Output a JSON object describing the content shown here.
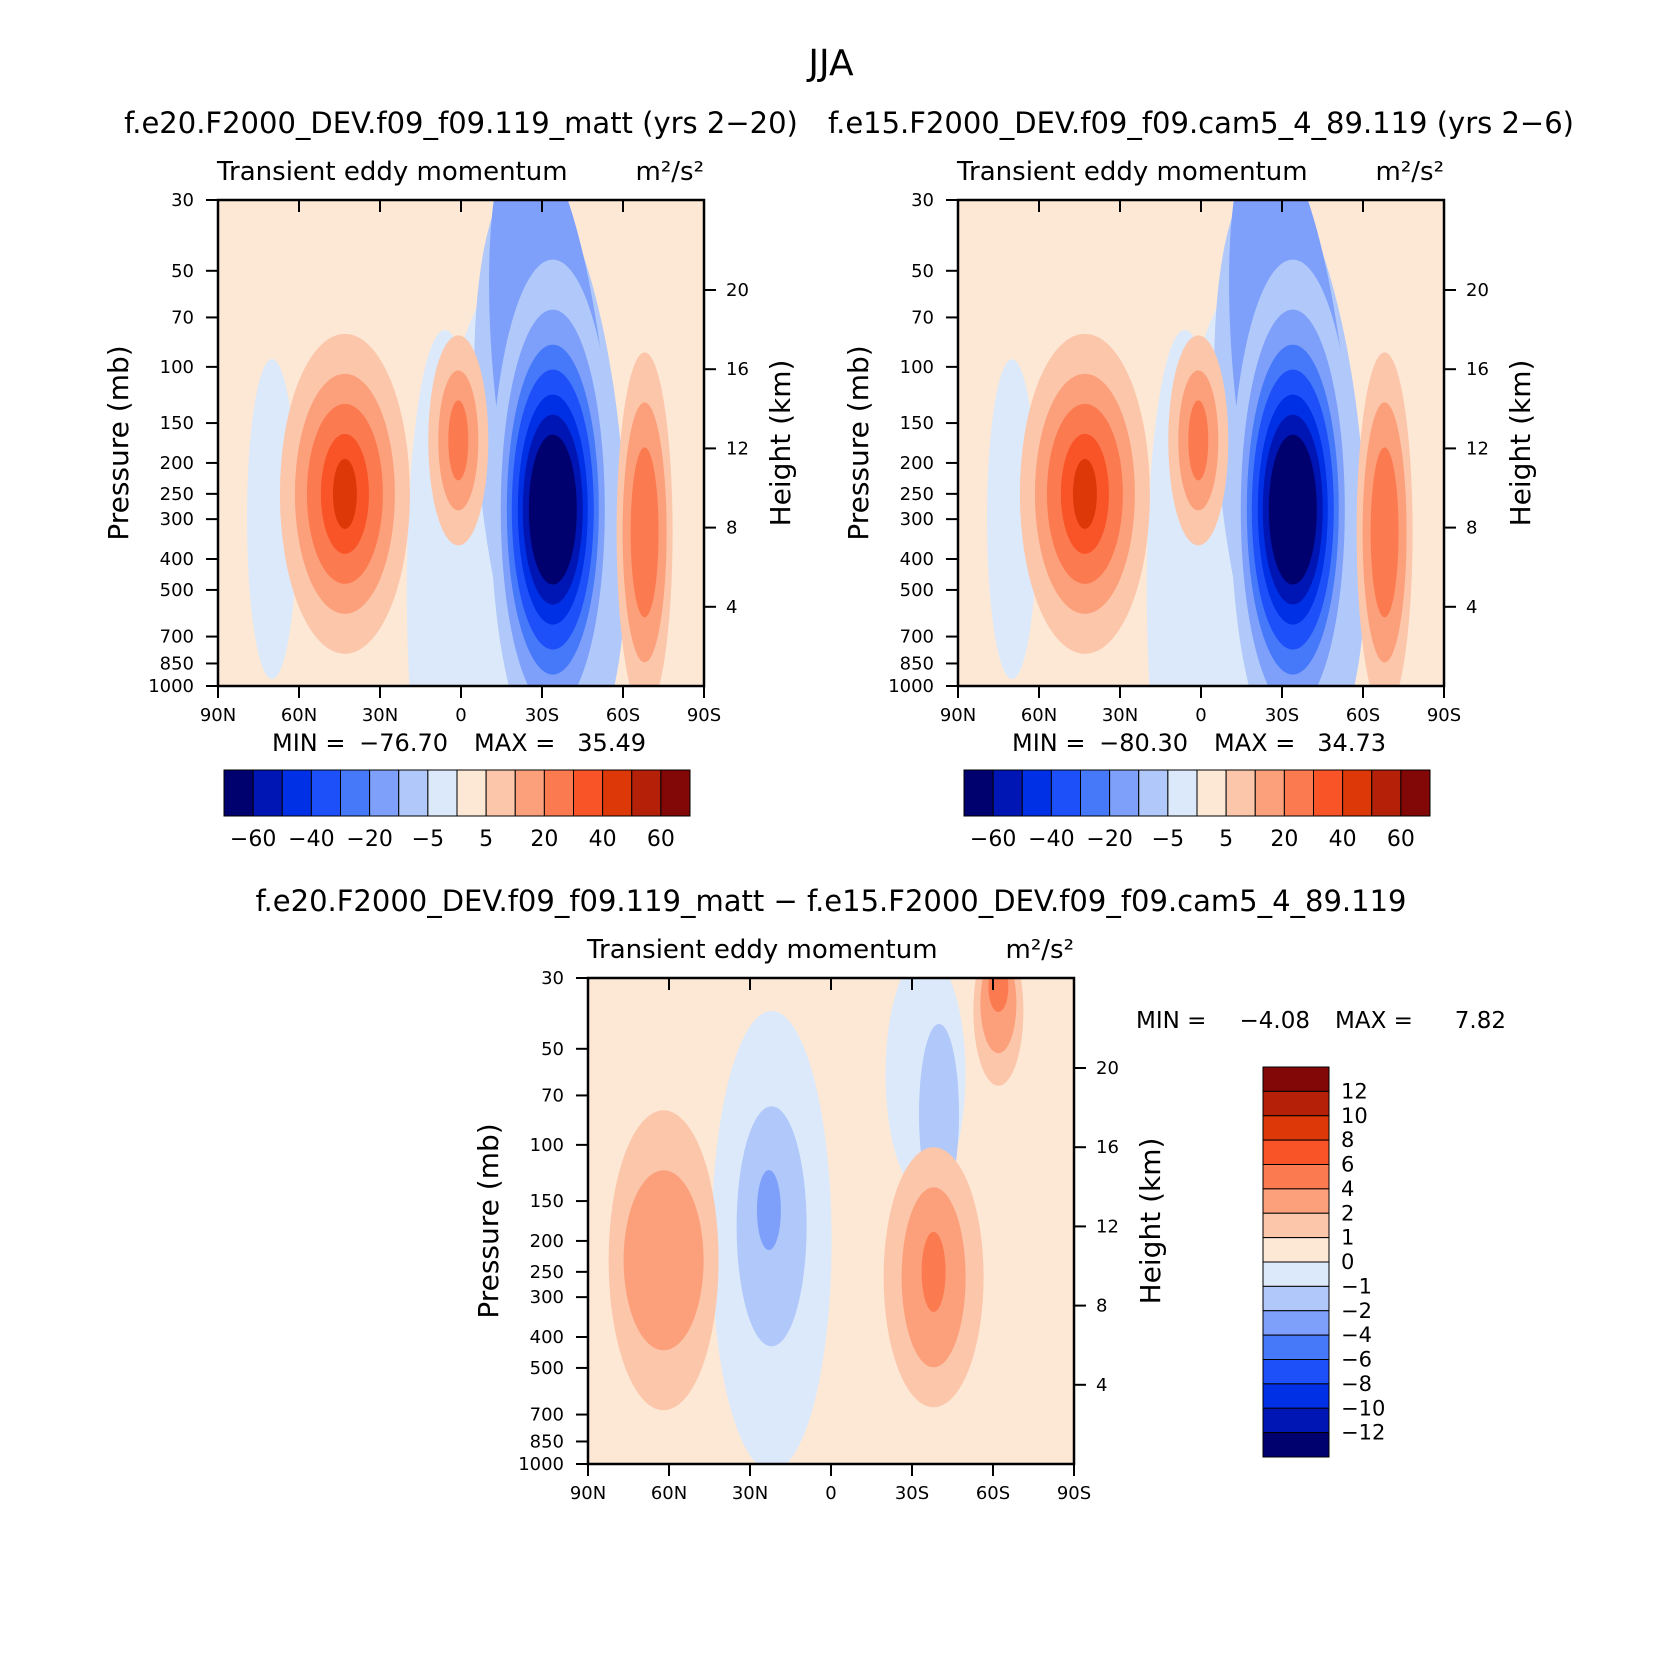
{
  "suptitle": "JJA",
  "colors": {
    "main_palette": [
      "#00006e",
      "#0016b4",
      "#0030e6",
      "#1e50fa",
      "#4678fa",
      "#7ea0fa",
      "#b0c8fa",
      "#dce9fa",
      "#fde8d6",
      "#fcc6aa",
      "#fca07c",
      "#fc7a50",
      "#f85428",
      "#dc3808",
      "#b42008",
      "#820808"
    ],
    "diff_palette": [
      "#00006e",
      "#0016b4",
      "#0030e6",
      "#1e50fa",
      "#4678fa",
      "#7ea0fa",
      "#b0c8fa",
      "#dce9fa",
      "#fde8d6",
      "#fcc6aa",
      "#fca07c",
      "#fc7a50",
      "#f85428",
      "#dc3808",
      "#b42008",
      "#820808"
    ]
  },
  "chart_data": [
    {
      "type": "heatmap",
      "panel": "model",
      "case_title": "f.e20.F2000_DEV.f09_f09.119_matt (yrs 2−20)",
      "subtitle": "Transient eddy momentum",
      "units": "m²/s²",
      "ylabel": "Pressure (mb)",
      "ylabel_right": "Height (km)",
      "x_ticks": [
        "90N",
        "60N",
        "30N",
        "0",
        "30S",
        "60S",
        "90S"
      ],
      "y_ticks": [
        "30",
        "50",
        "70",
        "100",
        "150",
        "200",
        "250",
        "300",
        "400",
        "500",
        "700",
        "850",
        "1000"
      ],
      "y_right_ticks": [
        "20",
        "16",
        "12",
        "8",
        "4"
      ],
      "stats": {
        "min_label": "MIN =",
        "min": "−76.70",
        "max_label": "MAX =",
        "max": "35.49"
      },
      "colorbar_labels": [
        "−60",
        "−40",
        "−20",
        "−5",
        "5",
        "20",
        "40",
        "60"
      ],
      "features": [
        {
          "lat": -34,
          "p": 280,
          "value": -76.7
        },
        {
          "lat": 43,
          "p": 250,
          "value": 35.5
        },
        {
          "lat": 1,
          "p": 200,
          "value": 22
        },
        {
          "lat": -68,
          "p": 300,
          "value": 30
        }
      ]
    },
    {
      "type": "heatmap",
      "panel": "control",
      "case_title": "f.e15.F2000_DEV.f09_f09.cam5_4_89.119 (yrs 2−6)",
      "subtitle": "Transient eddy momentum",
      "units": "m²/s²",
      "ylabel": "Pressure (mb)",
      "ylabel_right": "Height (km)",
      "x_ticks": [
        "90N",
        "60N",
        "30N",
        "0",
        "30S",
        "60S",
        "90S"
      ],
      "y_ticks": [
        "30",
        "50",
        "70",
        "100",
        "150",
        "200",
        "250",
        "300",
        "400",
        "500",
        "700",
        "850",
        "1000"
      ],
      "y_right_ticks": [
        "20",
        "16",
        "12",
        "8",
        "4"
      ],
      "stats": {
        "min_label": "MIN =",
        "min": "−80.30",
        "max_label": "MAX =",
        "max": "34.73"
      },
      "colorbar_labels": [
        "−60",
        "−40",
        "−20",
        "−5",
        "5",
        "20",
        "40",
        "60"
      ],
      "features": [
        {
          "lat": -34,
          "p": 280,
          "value": -80.3
        },
        {
          "lat": 43,
          "p": 250,
          "value": 34.7
        },
        {
          "lat": 1,
          "p": 200,
          "value": 22
        },
        {
          "lat": -68,
          "p": 300,
          "value": 30
        }
      ]
    },
    {
      "type": "heatmap",
      "panel": "difference",
      "case_title": "f.e20.F2000_DEV.f09_f09.119_matt − f.e15.F2000_DEV.f09_f09.cam5_4_89.119",
      "subtitle": "Transient eddy momentum",
      "units": "m²/s²",
      "ylabel": "Pressure (mb)",
      "ylabel_right": "Height (km)",
      "x_ticks": [
        "90N",
        "60N",
        "30N",
        "0",
        "30S",
        "60S",
        "90S"
      ],
      "y_ticks": [
        "30",
        "50",
        "70",
        "100",
        "150",
        "200",
        "250",
        "300",
        "400",
        "500",
        "700",
        "850",
        "1000"
      ],
      "y_right_ticks": [
        "20",
        "16",
        "12",
        "8",
        "4"
      ],
      "stats": {
        "min_label": "MIN =",
        "min": "−4.08",
        "max_label": "MAX =",
        "max": "7.82"
      },
      "colorbar_labels": [
        "12",
        "10",
        "8",
        "6",
        "4",
        "2",
        "1",
        "0",
        "−1",
        "−2",
        "−4",
        "−6",
        "−8",
        "−10",
        "−12"
      ],
      "features": [
        {
          "lat": -62,
          "p": 35,
          "value": 7.8
        },
        {
          "lat": -38,
          "p": 260,
          "value": 4.5
        },
        {
          "lat": 62,
          "p": 230,
          "value": 3.5
        },
        {
          "lat": 23,
          "p": 170,
          "value": -3.5
        },
        {
          "lat": -36,
          "p": 80,
          "value": -1.5
        }
      ]
    }
  ]
}
